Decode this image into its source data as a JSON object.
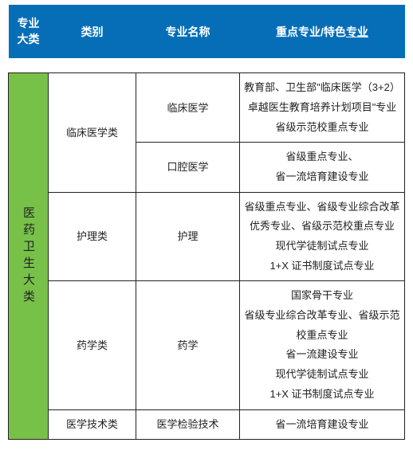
{
  "header": {
    "col1_line1": "专业",
    "col1_line2": "大类",
    "col2": "类别",
    "col3": "专业名称",
    "col4_prefix": "重点专业/特色",
    "col4_underlined": "专业"
  },
  "body": {
    "major_category": "医药卫生大类",
    "rows": [
      {
        "category": "临床医学类",
        "name": "临床医学",
        "desc": "教育部、卫生部\"临床医学（3+2）卓越医生教育培养计划项目\"专业\n省级示范校重点专业"
      },
      {
        "category": null,
        "name": "口腔医学",
        "desc": "省级重点专业、\n省一流培育建设专业"
      },
      {
        "category": "护理类",
        "name": "护理",
        "desc": "省级重点专业、省级专业综合改革优秀专业、省级示范校重点专业\n现代学徒制试点专业\n1+X 证书制度试点专业"
      },
      {
        "category": "药学类",
        "name": "药学",
        "desc": "国家骨干专业\n省级专业综合改革专业、省级示范校重点专业\n省一流建设专业\n现代学徒制试点专业\n1+X 证书制度试点专业"
      },
      {
        "category": "医学技术类",
        "name": "医学检验技术",
        "desc": "省一流培育建设专业"
      }
    ]
  },
  "colors": {
    "header_bg": "#066eb7",
    "header_text": "#ffffff",
    "vcat_bg": "#78c149",
    "border": "#222222",
    "body_text": "#222222",
    "page_bg": "#ffffff"
  }
}
